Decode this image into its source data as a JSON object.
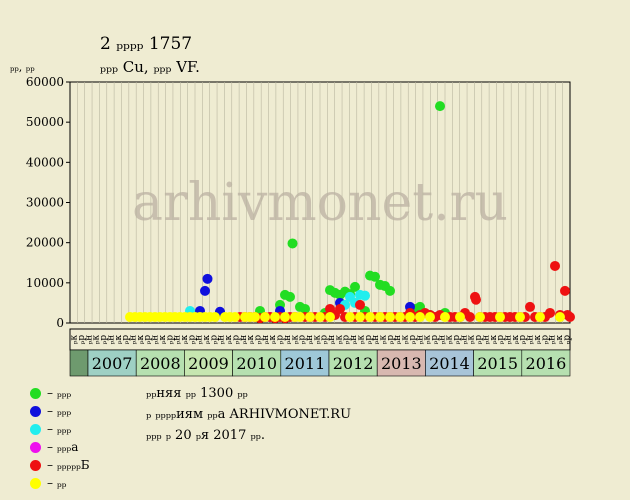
{
  "header": {
    "title": "2 ₚₚₚₚ 1757",
    "subtitle": "ₚₚₚ Cu, ₚₚₚ VF.",
    "ylabel": "ₚₚ, ₚₚ"
  },
  "watermark": "arhivmonet.ru",
  "notes": [
    "ₚₚняя ₚₚ 1300 ₚₚ",
    "ₚ ₚₚₚₚиям ₚₚа ARHIVMONET.RU",
    "ₚₚₚ ₚ 20 ₚя 2017 ₚₚ."
  ],
  "legend": [
    {
      "label": "– ₚₚₚ",
      "color": "#22dd22"
    },
    {
      "label": "– ₚₚₚ",
      "color": "#1010dd"
    },
    {
      "label": "– ₚₚₚ",
      "color": "#22eeee"
    },
    {
      "label": "– ₚₚₚа",
      "color": "#ee11ee"
    },
    {
      "label": "– ₚₚₚₚₚБ",
      "color": "#ee1111"
    },
    {
      "label": "– ₚₚ",
      "color": "#ffff00"
    }
  ],
  "chart_data": {
    "type": "scatter",
    "ylim": [
      0,
      60000
    ],
    "yticks": [
      0,
      10000,
      20000,
      30000,
      40000,
      50000,
      60000
    ],
    "months": [
      "ₚк",
      "ₚр",
      "ₚн",
      "ₚк",
      "ₚр",
      "ₚн",
      "ₚк",
      "ₚр",
      "ₚн",
      "ₚк",
      "ₚр",
      "ₚн",
      "ₚк",
      "ₚр",
      "ₚн",
      "ₚк",
      "ₚр",
      "ₚн",
      "ₚк",
      "ₚр",
      "ₚн",
      "ₚк",
      "ₚр",
      "ₚн",
      "ₚк",
      "ₚр",
      "ₚн",
      "ₚк",
      "ₚр",
      "ₚн",
      "ₚк",
      "ₚр",
      "ₚн",
      "ₚк",
      "ₚр",
      "ₚн",
      "ₚк",
      "ₚр",
      "ₚн",
      "ₚк",
      "ₚр",
      "ₚн",
      "ₚк",
      "ₚр",
      "ₚн",
      "ₚк",
      "ₚр",
      "ₚн",
      "ₚк",
      "ₚр",
      "ₚн",
      "ₚк",
      "ₚр",
      "ₚн",
      "ₚк",
      "ₚр",
      "ₚн",
      "ₚк",
      "ₚр",
      "ₚн",
      "ₚк",
      "ₚр",
      "ₚн",
      "ₚк",
      "ₚр",
      "ₚн",
      "ₚк",
      "ₚр"
    ],
    "years": [
      {
        "label": "2007",
        "color": "#9ed0c4"
      },
      {
        "label": "2008",
        "color": "#b6e0b0"
      },
      {
        "label": "2009",
        "color": "#c6e6b0"
      },
      {
        "label": "2010",
        "color": "#b6e0b0"
      },
      {
        "label": "2011",
        "color": "#9ec8d8"
      },
      {
        "label": "2012",
        "color": "#b6e0b0"
      },
      {
        "label": "2013",
        "color": "#d8b8b0"
      },
      {
        "label": "2014",
        "color": "#a8c4d8"
      },
      {
        "label": "2015",
        "color": "#b6e0b0"
      },
      {
        "label": "2016",
        "color": "#b6e0b0"
      }
    ],
    "series": [
      {
        "color": "#22dd22",
        "points": [
          [
            38,
            3000
          ],
          [
            42,
            4500
          ],
          [
            43,
            7000
          ],
          [
            44,
            6500
          ],
          [
            44.5,
            19800
          ],
          [
            46,
            4000
          ],
          [
            47,
            3500
          ],
          [
            51,
            2500
          ],
          [
            52,
            8200
          ],
          [
            53,
            7500
          ],
          [
            54,
            7000
          ],
          [
            55,
            7800
          ],
          [
            56,
            7200
          ],
          [
            57,
            9000
          ],
          [
            59,
            3000
          ],
          [
            60,
            11800
          ],
          [
            61,
            11500
          ],
          [
            62,
            9500
          ],
          [
            63,
            9200
          ],
          [
            64,
            8000
          ],
          [
            69,
            3500
          ],
          [
            70,
            4000
          ],
          [
            72,
            2000
          ],
          [
            74,
            54000
          ],
          [
            75,
            2500
          ]
        ]
      },
      {
        "color": "#1010dd",
        "points": [
          [
            27,
            8000
          ],
          [
            27.5,
            11000
          ],
          [
            26,
            3000
          ],
          [
            30,
            2800
          ],
          [
            42,
            3000
          ],
          [
            54,
            5000
          ],
          [
            68,
            4000
          ]
        ]
      },
      {
        "color": "#22eeee",
        "points": [
          [
            24,
            3000
          ],
          [
            55,
            4500
          ],
          [
            56,
            6500
          ],
          [
            57,
            5000
          ],
          [
            58,
            7000
          ],
          [
            59,
            6800
          ]
        ]
      },
      {
        "color": "#ee11ee",
        "points": [
          [
            40,
            1500
          ]
        ]
      },
      {
        "color": "#ee1111",
        "points": [
          [
            34,
            1500
          ],
          [
            35,
            1500
          ],
          [
            36,
            1500
          ],
          [
            37,
            1500
          ],
          [
            38,
            1200
          ],
          [
            39,
            1500
          ],
          [
            40,
            1500
          ],
          [
            41,
            1200
          ],
          [
            42,
            1500
          ],
          [
            43,
            1200
          ],
          [
            44,
            1500
          ],
          [
            45,
            1500
          ],
          [
            47,
            1500
          ],
          [
            48,
            1500
          ],
          [
            49,
            1500
          ],
          [
            51,
            1500
          ],
          [
            52,
            3500
          ],
          [
            53,
            2000
          ],
          [
            54,
            3500
          ],
          [
            55,
            1500
          ],
          [
            57,
            1500
          ],
          [
            58,
            4500
          ],
          [
            59,
            1500
          ],
          [
            61,
            1500
          ],
          [
            62,
            1500
          ],
          [
            63,
            1500
          ],
          [
            64,
            1500
          ],
          [
            65,
            1500
          ],
          [
            66,
            1500
          ],
          [
            67,
            1500
          ],
          [
            68,
            2500
          ],
          [
            69,
            1500
          ],
          [
            70,
            2000
          ],
          [
            71,
            2500
          ],
          [
            72,
            2000
          ],
          [
            73,
            1500
          ],
          [
            74,
            2000
          ],
          [
            76,
            1500
          ],
          [
            77,
            1500
          ],
          [
            78,
            1500
          ],
          [
            79,
            2500
          ],
          [
            80,
            1500
          ],
          [
            81,
            6500
          ],
          [
            81.2,
            5800
          ],
          [
            82,
            1500
          ],
          [
            83,
            1500
          ],
          [
            84,
            1500
          ],
          [
            85,
            1500
          ],
          [
            86,
            1500
          ],
          [
            87,
            1500
          ],
          [
            88,
            1500
          ],
          [
            89,
            1500
          ],
          [
            90,
            1500
          ],
          [
            91,
            1500
          ],
          [
            92,
            4000
          ],
          [
            93,
            1500
          ],
          [
            94,
            1500
          ],
          [
            95,
            1500
          ],
          [
            96,
            2500
          ],
          [
            97,
            14200
          ],
          [
            98,
            2000
          ],
          [
            99,
            8000
          ],
          [
            99.5,
            2000
          ],
          [
            100,
            1500
          ]
        ]
      },
      {
        "color": "#ffff00",
        "points": [
          [
            12,
            1500
          ],
          [
            13,
            1500
          ],
          [
            14,
            1500
          ],
          [
            15,
            1500
          ],
          [
            16,
            1500
          ],
          [
            17,
            1500
          ],
          [
            18,
            1500
          ],
          [
            19,
            1500
          ],
          [
            20,
            1500
          ],
          [
            21,
            1500
          ],
          [
            22,
            1500
          ],
          [
            23,
            1500
          ],
          [
            24,
            1500
          ],
          [
            25,
            1500
          ],
          [
            26,
            1500
          ],
          [
            27,
            1500
          ],
          [
            28,
            1500
          ],
          [
            29,
            1500
          ],
          [
            31,
            1500
          ],
          [
            32,
            1500
          ],
          [
            33,
            1500
          ],
          [
            35,
            1500
          ],
          [
            36,
            1500
          ],
          [
            37,
            1500
          ],
          [
            39,
            1500
          ],
          [
            41,
            1500
          ],
          [
            43,
            1500
          ],
          [
            45,
            1500
          ],
          [
            46,
            1500
          ],
          [
            48,
            1500
          ],
          [
            50,
            1500
          ],
          [
            52,
            1500
          ],
          [
            56,
            1500
          ],
          [
            58,
            1500
          ],
          [
            60,
            1500
          ],
          [
            62,
            1500
          ],
          [
            64,
            1500
          ],
          [
            66,
            1500
          ],
          [
            68,
            1500
          ],
          [
            70,
            1500
          ],
          [
            72,
            1500
          ],
          [
            75,
            1500
          ],
          [
            78,
            1500
          ],
          [
            82,
            1500
          ],
          [
            86,
            1500
          ],
          [
            90,
            1500
          ],
          [
            94,
            1500
          ],
          [
            98,
            1500
          ]
        ]
      }
    ]
  }
}
